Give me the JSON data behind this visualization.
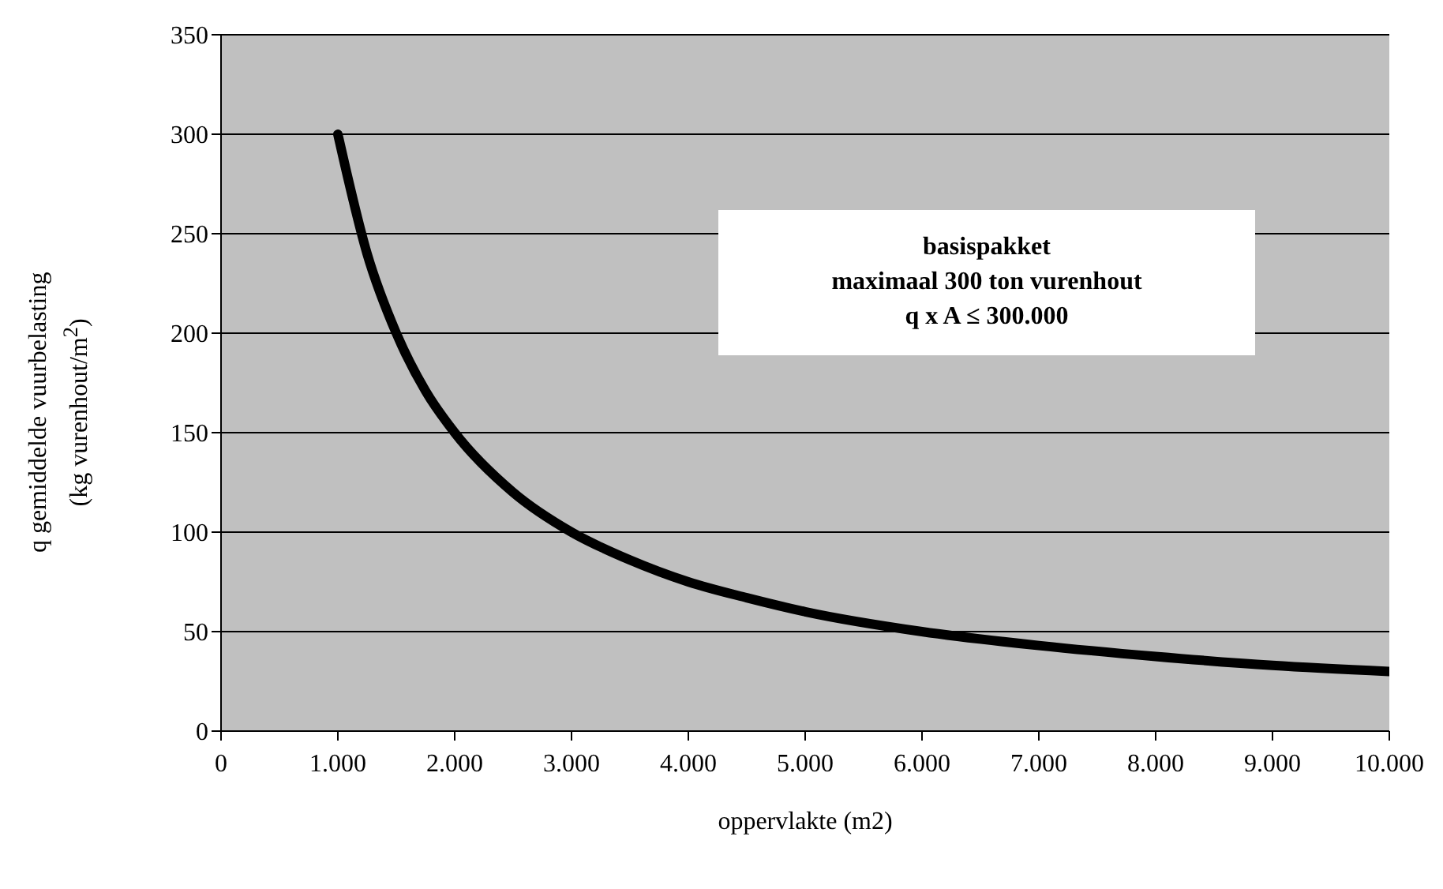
{
  "chart_data": {
    "type": "line",
    "xlabel": "oppervlakte (m2)",
    "ylabel": "q gemiddelde vuurbelasting\n(kg vurenhout/m$^{2}$)",
    "x": [
      1000,
      1250,
      1500,
      1750,
      2000,
      2500,
      3000,
      3500,
      4000,
      4500,
      5000,
      6000,
      7000,
      8000,
      9000,
      10000
    ],
    "series": [
      {
        "color": "#000000",
        "values": [
          300,
          240,
          200,
          171,
          150,
          120,
          100,
          86,
          75,
          67,
          60,
          50,
          43,
          37.5,
          33,
          30
        ]
      }
    ],
    "xlim": [
      0,
      10000
    ],
    "xticks": [
      0,
      {
        "value": 1000,
        "label": "1.000"
      },
      {
        "value": 2000,
        "label": "2.000"
      },
      {
        "value": 3000,
        "label": "3.000"
      },
      {
        "value": 4000,
        "label": "4.000"
      },
      {
        "value": 5000,
        "label": "5.000"
      },
      {
        "value": 6000,
        "label": "6.000"
      },
      {
        "value": 7000,
        "label": "7.000"
      },
      {
        "value": 8000,
        "label": "8.000"
      },
      {
        "value": 9000,
        "label": "9.000"
      },
      {
        "value": 10000,
        "label": "10.000"
      }
    ],
    "ylim": [
      0,
      350
    ],
    "yticks": [
      0,
      50,
      100,
      150,
      200,
      250,
      300,
      350
    ],
    "grid": "y",
    "marker": "none",
    "line_style": "solid",
    "annotations": [
      "basispakket",
      "maximaal 300 ton vurenhout",
      "q x A ≤ 300.000"
    ]
  }
}
